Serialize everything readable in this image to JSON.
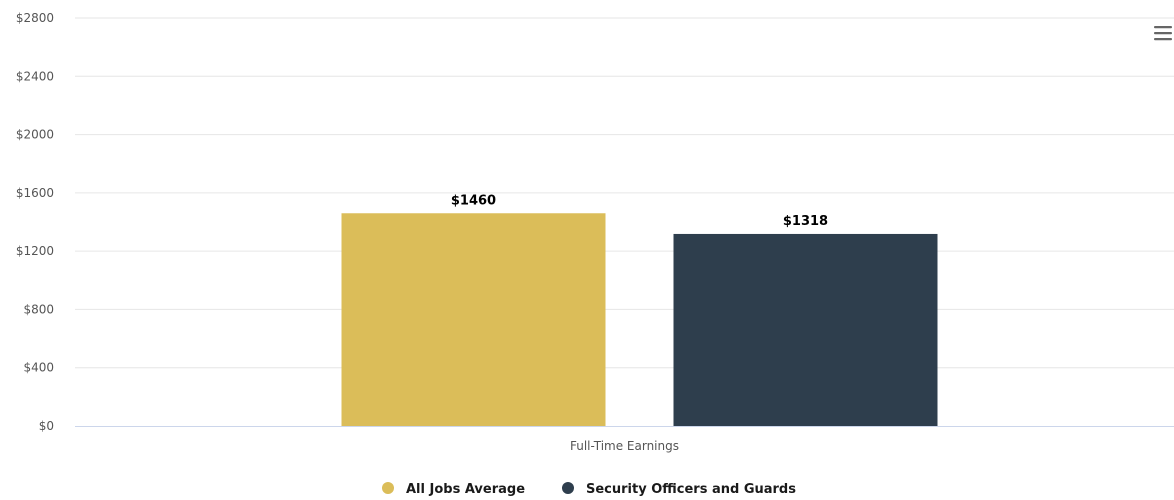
{
  "chart_data": {
    "type": "bar",
    "title": "",
    "xlabel": "",
    "ylabel": "",
    "categories": [
      "Full-Time Earnings"
    ],
    "series": [
      {
        "name": "All Jobs Average",
        "values": [
          1460
        ],
        "color": "#dbbd59",
        "label": "$1460"
      },
      {
        "name": "Security Officers and Guards",
        "values": [
          1318
        ],
        "color": "#2e3e4d",
        "label": "$1318"
      }
    ],
    "ylim": [
      0,
      2800
    ],
    "yticks": [
      0,
      400,
      800,
      1200,
      1600,
      2000,
      2400,
      2800
    ],
    "ytick_labels": [
      "$0",
      "$400",
      "$800",
      "$1200",
      "$1600",
      "$2000",
      "$2400",
      "$2800"
    ],
    "grid": true,
    "legend": "bottom-center"
  },
  "toolbar": {
    "menu_icon": "hamburger-menu-icon"
  },
  "colors": {
    "gridline": "#e6e6e6",
    "axis_line": "#ccd6eb",
    "menu_icon": "#666666"
  }
}
